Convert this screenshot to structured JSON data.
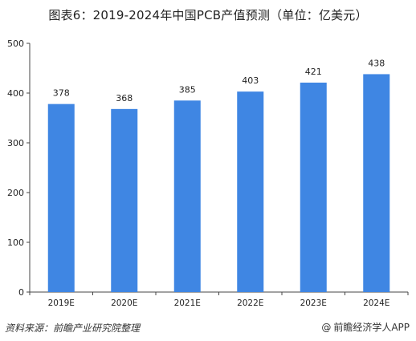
{
  "chart_data": {
    "type": "bar",
    "title": "图表6：2019-2024年中国PCB产值预测（单位：亿美元）",
    "categories": [
      "2019E",
      "2020E",
      "2021E",
      "2022E",
      "2023E",
      "2024E"
    ],
    "values": [
      378,
      368,
      385,
      403,
      421,
      438
    ],
    "ylim": [
      0,
      500
    ],
    "yticks": [
      0,
      100,
      200,
      300,
      400,
      500
    ],
    "grid": false,
    "legend": "none",
    "bar_color": "#3f86e3"
  },
  "footer": {
    "source": "资料来源：前瞻产业研究院整理",
    "watermark": "前瞻经济学人APP"
  }
}
